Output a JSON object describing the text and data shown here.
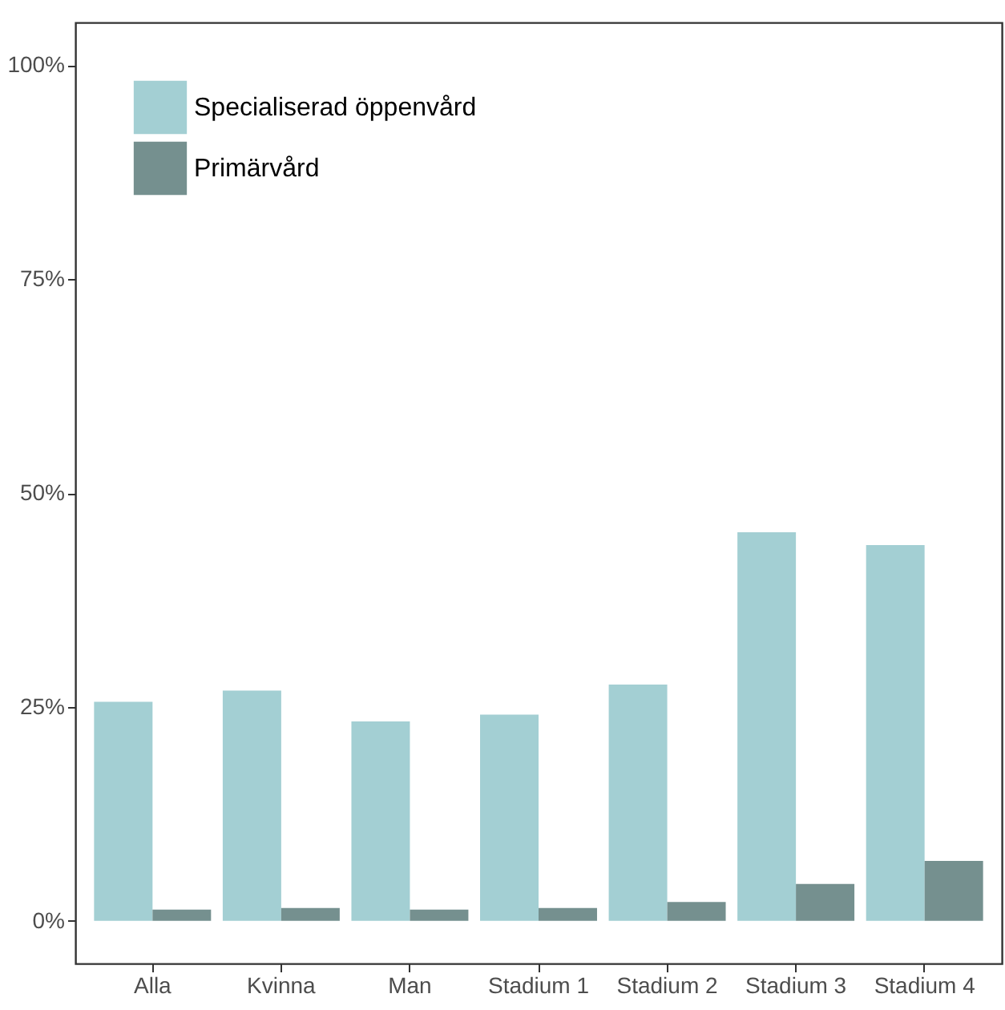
{
  "chart_data": {
    "type": "bar",
    "categories": [
      "Alla",
      "Kvinna",
      "Man",
      "Stadium 1",
      "Stadium 2",
      "Stadium 3",
      "Stadium 4"
    ],
    "series": [
      {
        "name": "Specialiserad öppenvård",
        "color": "#a3cfd3",
        "values": [
          25.6,
          26.9,
          23.3,
          24.1,
          27.6,
          45.4,
          43.9
        ]
      },
      {
        "name": "Primärvård",
        "color": "#75908f",
        "values": [
          1.3,
          1.5,
          1.3,
          1.5,
          2.2,
          4.3,
          7.0
        ]
      }
    ],
    "ylim": [
      -5,
      105
    ],
    "yticks": [
      {
        "value": 0,
        "label": "0%"
      },
      {
        "value": 25,
        "label": "25%"
      },
      {
        "value": 50,
        "label": "50%"
      },
      {
        "value": 75,
        "label": "75%"
      },
      {
        "value": 100,
        "label": "100%"
      }
    ],
    "grid": false,
    "legend": "top left"
  }
}
